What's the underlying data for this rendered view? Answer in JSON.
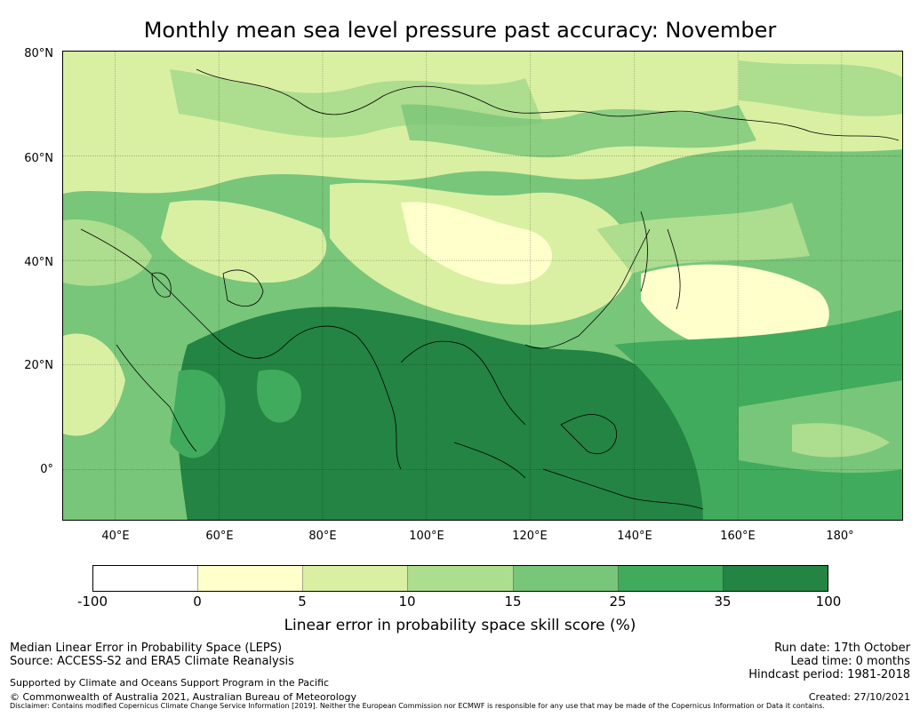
{
  "title": "Monthly mean sea level pressure past accuracy: November",
  "map": {
    "lat_labels": [
      "80°N",
      "60°N",
      "40°N",
      "20°N",
      "0°"
    ],
    "lon_labels": [
      "40°E",
      "60°E",
      "80°E",
      "100°E",
      "120°E",
      "140°E",
      "160°E",
      "180°"
    ],
    "lat_range": [
      -10,
      80
    ],
    "lon_range": [
      30,
      192
    ],
    "lat_ticks": [
      80,
      60,
      40,
      20,
      0
    ],
    "lon_ticks": [
      40,
      60,
      80,
      100,
      120,
      140,
      160,
      180
    ]
  },
  "colorbar": {
    "ticks": [
      "-100",
      "0",
      "5",
      "10",
      "15",
      "25",
      "35",
      "100"
    ],
    "colors": [
      "#ffffff",
      "#ffffcc",
      "#d9f0a3",
      "#addd8e",
      "#78c679",
      "#41ab5d",
      "#238443"
    ],
    "label": "Linear error in probability space skill score (%)"
  },
  "footer": {
    "left_line1": "Median Linear Error in Probability Space (LEPS)",
    "left_line2": "Source: ACCESS-S2 and ERA5 Climate Reanalysis",
    "supported": "Supported by Climate and Oceans Support Program in the Pacific",
    "copyright": "© Commonwealth of Australia 2021, Australian Bureau of Meteorology",
    "run_date": "Run date: 17th October",
    "lead_time": "Lead time: 0 months",
    "hindcast": "Hindcast period: 1981-2018",
    "created": "Created: 27/10/2021",
    "disclaimer": "Disclaimer: Contains modified Copernicus Climate Change Service Information [2019]. Neither the European Commission nor ECMWF is responsible for any use that may be made of the Copernicus Information or Data it contains."
  }
}
